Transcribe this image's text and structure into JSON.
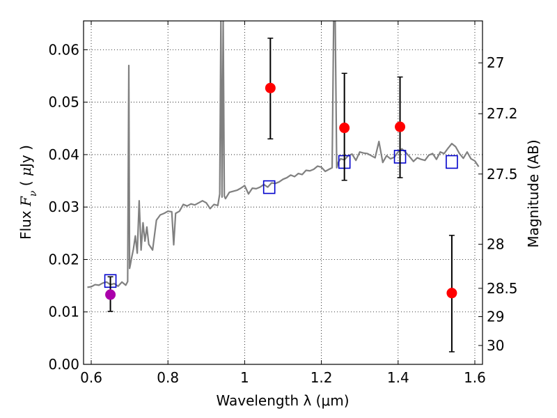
{
  "chart_data": {
    "type": "scatter",
    "xlabel": "Wavelength  λ (μm)",
    "ylabel": "Flux  F_ν  ( μJy )",
    "ylabel_right": "Magnitude (AB)",
    "xlim": [
      0.58,
      1.62
    ],
    "ylim": [
      0.0,
      0.0655
    ],
    "x_ticks": [
      0.6,
      0.8,
      1.0,
      1.2,
      1.4,
      1.6
    ],
    "x_tick_labels": [
      "0.6",
      "0.8",
      "1",
      "1.2",
      "1.4",
      "1.6"
    ],
    "y_ticks": [
      0.0,
      0.01,
      0.02,
      0.03,
      0.04,
      0.05,
      0.06
    ],
    "y_tick_labels": [
      "0.00",
      "0.01",
      "0.02",
      "0.03",
      "0.04",
      "0.05",
      "0.06"
    ],
    "right_ticks": [
      {
        "mag": "27",
        "flux": 0.0575
      },
      {
        "mag": "27.2",
        "flux": 0.0478
      },
      {
        "mag": "27.5",
        "flux": 0.0363
      },
      {
        "mag": "28",
        "flux": 0.0229
      },
      {
        "mag": "28.5",
        "flux": 0.0145
      },
      {
        "mag": "29",
        "flux": 0.0091
      },
      {
        "mag": "30",
        "flux": 0.0036
      }
    ],
    "grid": true,
    "colors": {
      "model": "#808080",
      "observed": "#ff0000",
      "observed_alt": "#aa00aa",
      "synthetic": "#0000cc",
      "errorbar": "#000000"
    },
    "series": [
      {
        "kind": "model_spectrum",
        "x": [
          0.59,
          0.6,
          0.61,
          0.62,
          0.63,
          0.64,
          0.65,
          0.66,
          0.67,
          0.68,
          0.69,
          0.695,
          0.698,
          0.7,
          0.702,
          0.705,
          0.71,
          0.715,
          0.72,
          0.725,
          0.73,
          0.735,
          0.74,
          0.745,
          0.75,
          0.76,
          0.77,
          0.78,
          0.79,
          0.8,
          0.81,
          0.815,
          0.82,
          0.83,
          0.84,
          0.85,
          0.86,
          0.87,
          0.88,
          0.89,
          0.9,
          0.91,
          0.92,
          0.93,
          0.935,
          0.938,
          0.941,
          0.944,
          0.947,
          0.95,
          0.96,
          0.97,
          0.98,
          0.99,
          1.0,
          1.01,
          1.02,
          1.03,
          1.04,
          1.05,
          1.06,
          1.07,
          1.08,
          1.09,
          1.1,
          1.11,
          1.12,
          1.13,
          1.14,
          1.15,
          1.16,
          1.17,
          1.18,
          1.19,
          1.2,
          1.21,
          1.22,
          1.228,
          1.232,
          1.236,
          1.24,
          1.244,
          1.25,
          1.26,
          1.27,
          1.28,
          1.29,
          1.3,
          1.31,
          1.32,
          1.33,
          1.34,
          1.35,
          1.36,
          1.37,
          1.38,
          1.39,
          1.4,
          1.41,
          1.42,
          1.43,
          1.44,
          1.45,
          1.46,
          1.47,
          1.48,
          1.49,
          1.5,
          1.51,
          1.52,
          1.53,
          1.54,
          1.55,
          1.56,
          1.57,
          1.58,
          1.59,
          1.6,
          1.61
        ],
        "y": [
          0.0147,
          0.0148,
          0.0152,
          0.0151,
          0.0155,
          0.0157,
          0.0152,
          0.0154,
          0.0149,
          0.0157,
          0.0151,
          0.0158,
          0.057,
          0.0183,
          0.019,
          0.0202,
          0.022,
          0.0245,
          0.0212,
          0.0312,
          0.0218,
          0.027,
          0.0235,
          0.0262,
          0.0229,
          0.0218,
          0.0275,
          0.0285,
          0.0288,
          0.0292,
          0.0291,
          0.0228,
          0.0288,
          0.0292,
          0.0305,
          0.0302,
          0.0306,
          0.0304,
          0.0308,
          0.0312,
          0.0308,
          0.0297,
          0.0305,
          0.0303,
          0.0325,
          0.0655,
          0.0319,
          0.0655,
          0.0321,
          0.0316,
          0.0328,
          0.033,
          0.0332,
          0.0336,
          0.0341,
          0.0325,
          0.0336,
          0.0335,
          0.0338,
          0.0343,
          0.0338,
          0.0346,
          0.0345,
          0.0348,
          0.0353,
          0.0356,
          0.0361,
          0.0358,
          0.0364,
          0.0362,
          0.037,
          0.0369,
          0.0372,
          0.0378,
          0.0376,
          0.0368,
          0.0372,
          0.0375,
          0.0655,
          0.0655,
          0.0375,
          0.0385,
          0.0392,
          0.039,
          0.0398,
          0.0401,
          0.0389,
          0.0405,
          0.0403,
          0.0402,
          0.0398,
          0.0394,
          0.0425,
          0.0385,
          0.0398,
          0.0392,
          0.0395,
          0.0405,
          0.0411,
          0.0404,
          0.0396,
          0.0387,
          0.0394,
          0.0391,
          0.0389,
          0.0399,
          0.0402,
          0.0391,
          0.0405,
          0.0402,
          0.0412,
          0.0421,
          0.0415,
          0.0402,
          0.0393,
          0.0405,
          0.0392,
          0.0388,
          0.0377
        ]
      },
      {
        "kind": "synthetic_photometry",
        "x": [
          0.65,
          1.064,
          1.26,
          1.405,
          1.54
        ],
        "y": [
          0.0159,
          0.0338,
          0.0386,
          0.0396,
          0.0386
        ]
      },
      {
        "kind": "observed_photometry",
        "points": [
          {
            "x": 0.65,
            "y": 0.0133,
            "err_lo": 0.0101,
            "err_hi": 0.0167,
            "color": "#aa00aa"
          },
          {
            "x": 1.067,
            "y": 0.0527,
            "err_lo": 0.043,
            "err_hi": 0.0622,
            "color": "#ff0000"
          },
          {
            "x": 1.26,
            "y": 0.0451,
            "err_lo": 0.0351,
            "err_hi": 0.0555,
            "color": "#ff0000"
          },
          {
            "x": 1.405,
            "y": 0.0453,
            "err_lo": 0.0356,
            "err_hi": 0.0548,
            "color": "#ff0000"
          },
          {
            "x": 1.54,
            "y": 0.0136,
            "err_lo": 0.0024,
            "err_hi": 0.0246,
            "color": "#ff0000"
          }
        ]
      }
    ]
  }
}
